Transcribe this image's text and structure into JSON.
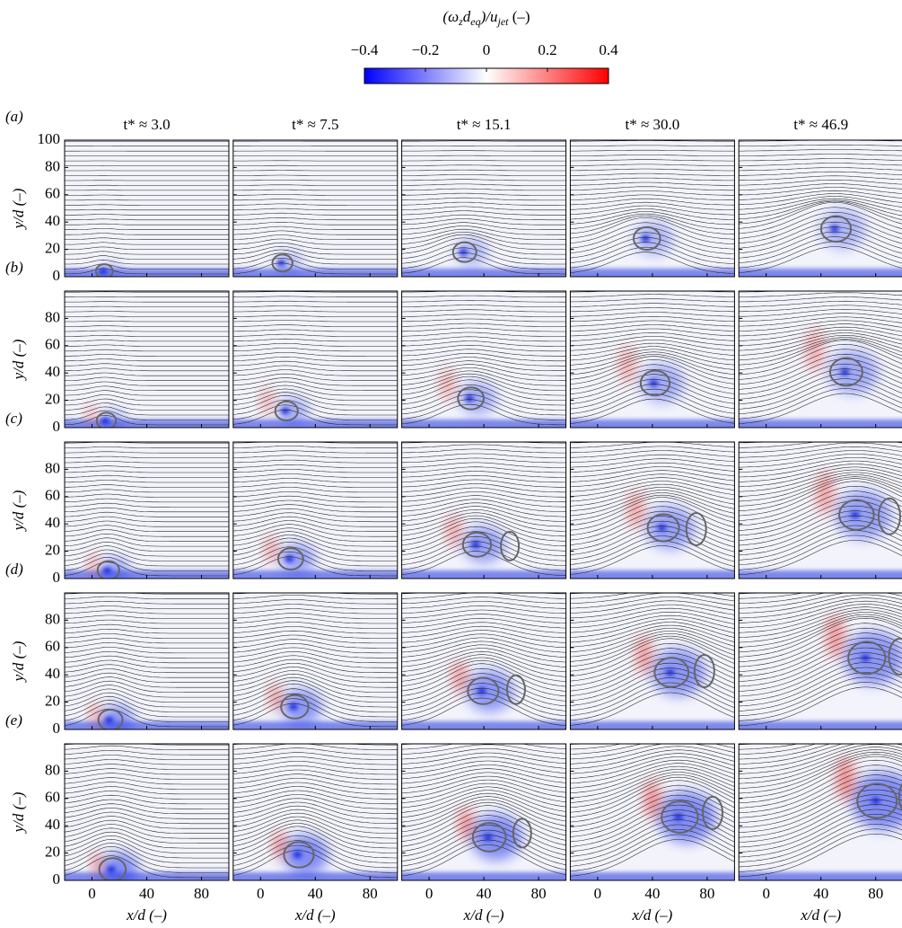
{
  "chart_data": {
    "type": "heatmap-grid",
    "colorbar": {
      "label": [
        "(ω",
        "z",
        "d",
        "eq",
        ")/u",
        "jet",
        " (–)"
      ],
      "lim": [
        -0.4,
        0.4
      ],
      "ticks": [
        {
          "value": -0.4,
          "label": "−0.4"
        },
        {
          "value": -0.2,
          "label": "−0.2"
        },
        0,
        0.2,
        0.4
      ],
      "colors": [
        "#0000ff",
        "#ffffff",
        "#ff0000"
      ]
    },
    "columns": [
      "t* ≈ 3.0",
      "t* ≈ 7.5",
      "t* ≈ 15.1",
      "t* ≈ 30.0",
      "t* ≈ 46.9"
    ],
    "rows": [
      {
        "label": "(a)",
        "yticks": [
          0,
          20,
          40,
          60,
          80,
          100
        ]
      },
      {
        "label": "(b)",
        "yticks": [
          0,
          20,
          40,
          60,
          80
        ]
      },
      {
        "label": "(c)",
        "yticks": [
          0,
          20,
          40,
          60,
          80
        ]
      },
      {
        "label": "(d)",
        "yticks": [
          0,
          20,
          40,
          60,
          80
        ]
      },
      {
        "label": "(e)",
        "yticks": [
          0,
          20,
          40,
          60,
          80
        ]
      }
    ],
    "xlabel": "x/d (–)",
    "ylabel": "y/d (–)",
    "xlim": [
      -20,
      100
    ],
    "xticks": [
      0,
      40,
      80
    ],
    "ylim": [
      0,
      100
    ]
  }
}
